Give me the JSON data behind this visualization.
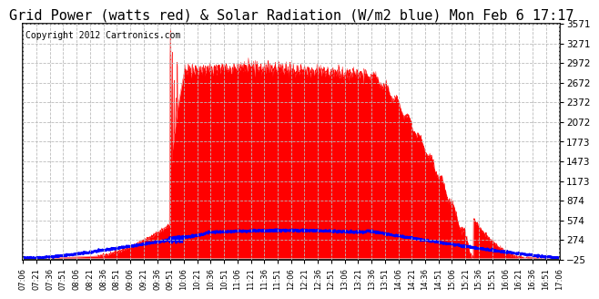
{
  "title": "Grid Power (watts red) & Solar Radiation (W/m2 blue) Mon Feb 6 17:17",
  "copyright": "Copyright 2012 Cartronics.com",
  "ymin": -25.4,
  "ymax": 3570.9,
  "yticks": [
    3570.9,
    3271.2,
    2971.5,
    2671.8,
    2372.1,
    2072.4,
    1772.7,
    1473.1,
    1173.4,
    873.7,
    574.0,
    274.3,
    -25.4
  ],
  "xstart_minutes": 426,
  "xend_minutes": 1027,
  "xtick_interval": 15,
  "background_color": "#ffffff",
  "grid_color": "#bbbbbb",
  "red_color": "#ff0000",
  "blue_color": "#0000ff",
  "title_fontsize": 11,
  "copyright_fontsize": 7
}
